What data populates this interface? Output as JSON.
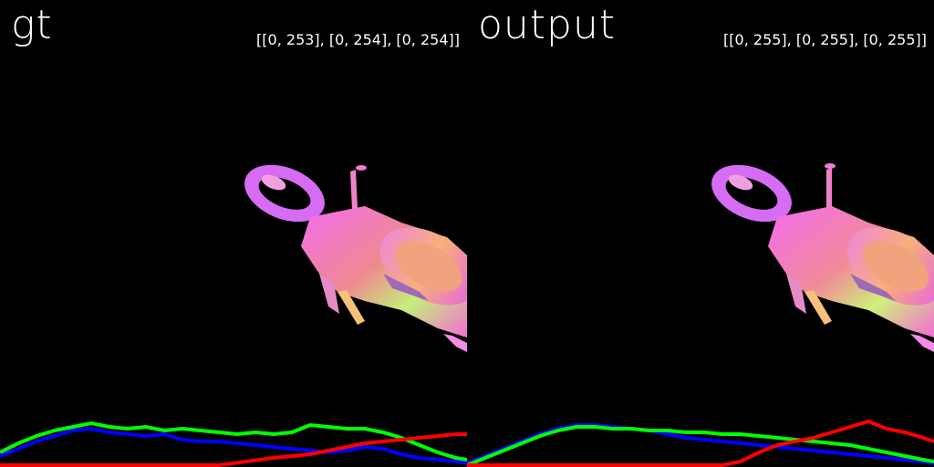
{
  "panels": [
    {
      "id": "gt",
      "title": "gt",
      "range": "[[0, 253], [0, 254], [0, 254]]"
    },
    {
      "id": "output",
      "title": "output",
      "range": "[[0, 255], [0, 255], [0, 255]]"
    }
  ],
  "colors": {
    "background": "#000000",
    "text": "#ffffff",
    "red_channel": "#ff0000",
    "green_channel": "#00ff00",
    "blue_channel": "#0000ff"
  }
}
